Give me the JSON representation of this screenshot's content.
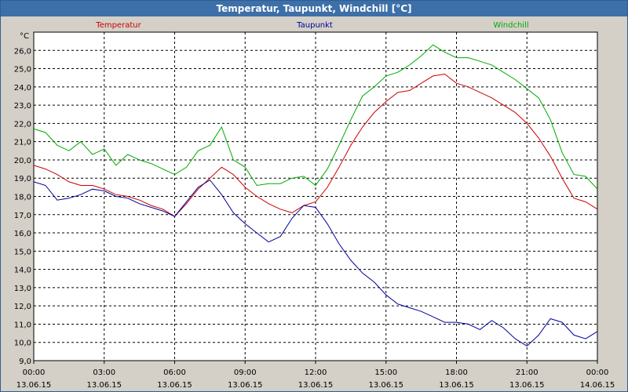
{
  "window": {
    "title": "Temperatur, Taupunkt, Windchill [°C]"
  },
  "chart_data": {
    "type": "line",
    "title": "Temperatur, Taupunkt, Windchill [°C]",
    "ylabel": "°C",
    "ylim": [
      9.0,
      27.0
    ],
    "yticks": [
      "9,0",
      "10,0",
      "11,0",
      "12,0",
      "13,0",
      "14,0",
      "15,0",
      "16,0",
      "17,0",
      "18,0",
      "19,0",
      "20,0",
      "21,0",
      "22,0",
      "23,0",
      "24,0",
      "25,0",
      "26,0"
    ],
    "xlim": [
      0,
      24
    ],
    "xticks": [
      {
        "time": "00:00",
        "date": "13.06.15"
      },
      {
        "time": "03:00",
        "date": "13.06.15"
      },
      {
        "time": "06:00",
        "date": "13.06.15"
      },
      {
        "time": "09:00",
        "date": "13.06.15"
      },
      {
        "time": "12:00",
        "date": "13.06.15"
      },
      {
        "time": "15:00",
        "date": "13.06.15"
      },
      {
        "time": "18:00",
        "date": "13.06.15"
      },
      {
        "time": "21:00",
        "date": "13.06.15"
      },
      {
        "time": "00:00",
        "date": "14.06.15"
      }
    ],
    "grid": true,
    "legend": "top",
    "series": [
      {
        "name": "Temperatur",
        "color": "#cc0000",
        "points": [
          [
            0,
            19.7
          ],
          [
            0.5,
            19.5
          ],
          [
            1,
            19.2
          ],
          [
            1.5,
            18.8
          ],
          [
            2,
            18.6
          ],
          [
            2.5,
            18.6
          ],
          [
            3,
            18.4
          ],
          [
            3.5,
            18.1
          ],
          [
            4,
            18.0
          ],
          [
            4.5,
            17.8
          ],
          [
            5,
            17.5
          ],
          [
            5.5,
            17.3
          ],
          [
            6,
            16.9
          ],
          [
            6.5,
            17.6
          ],
          [
            7,
            18.4
          ],
          [
            7.5,
            19.0
          ],
          [
            8,
            19.6
          ],
          [
            8.5,
            19.2
          ],
          [
            9,
            18.5
          ],
          [
            9.5,
            18.0
          ],
          [
            10,
            17.6
          ],
          [
            10.5,
            17.3
          ],
          [
            11,
            17.1
          ],
          [
            11.5,
            17.5
          ],
          [
            12,
            17.7
          ],
          [
            12.5,
            18.5
          ],
          [
            13,
            19.6
          ],
          [
            13.5,
            20.8
          ],
          [
            14,
            21.8
          ],
          [
            14.5,
            22.6
          ],
          [
            15,
            23.2
          ],
          [
            15.5,
            23.7
          ],
          [
            16,
            23.8
          ],
          [
            16.5,
            24.2
          ],
          [
            17,
            24.6
          ],
          [
            17.5,
            24.7
          ],
          [
            18,
            24.2
          ],
          [
            18.5,
            24.0
          ],
          [
            19,
            23.7
          ],
          [
            19.5,
            23.4
          ],
          [
            20,
            23.0
          ],
          [
            20.5,
            22.6
          ],
          [
            21,
            22.0
          ],
          [
            21.5,
            21.2
          ],
          [
            22,
            20.2
          ],
          [
            22.5,
            19.0
          ],
          [
            23,
            17.9
          ],
          [
            23.5,
            17.7
          ],
          [
            24,
            17.3
          ]
        ]
      },
      {
        "name": "Taupunkt",
        "color": "#000099",
        "points": [
          [
            0,
            18.8
          ],
          [
            0.5,
            18.6
          ],
          [
            1,
            17.8
          ],
          [
            1.5,
            17.9
          ],
          [
            2,
            18.1
          ],
          [
            2.5,
            18.4
          ],
          [
            3,
            18.3
          ],
          [
            3.5,
            18.0
          ],
          [
            4,
            17.9
          ],
          [
            4.5,
            17.6
          ],
          [
            5,
            17.4
          ],
          [
            5.5,
            17.2
          ],
          [
            6,
            16.9
          ],
          [
            6.5,
            17.7
          ],
          [
            7,
            18.5
          ],
          [
            7.5,
            18.9
          ],
          [
            8,
            18.1
          ],
          [
            8.5,
            17.1
          ],
          [
            9,
            16.5
          ],
          [
            9.5,
            16.0
          ],
          [
            10,
            15.5
          ],
          [
            10.5,
            15.8
          ],
          [
            11,
            16.8
          ],
          [
            11.5,
            17.5
          ],
          [
            12,
            17.4
          ],
          [
            12.5,
            16.5
          ],
          [
            13,
            15.4
          ],
          [
            13.5,
            14.5
          ],
          [
            14,
            13.8
          ],
          [
            14.5,
            13.3
          ],
          [
            15,
            12.6
          ],
          [
            15.5,
            12.1
          ],
          [
            16,
            11.9
          ],
          [
            16.5,
            11.7
          ],
          [
            17,
            11.4
          ],
          [
            17.5,
            11.1
          ],
          [
            18,
            11.1
          ],
          [
            18.5,
            11.0
          ],
          [
            19,
            10.7
          ],
          [
            19.5,
            11.2
          ],
          [
            20,
            10.8
          ],
          [
            20.5,
            10.2
          ],
          [
            21,
            9.8
          ],
          [
            21.5,
            10.4
          ],
          [
            22,
            11.3
          ],
          [
            22.5,
            11.1
          ],
          [
            23,
            10.4
          ],
          [
            23.5,
            10.2
          ],
          [
            24,
            10.6
          ]
        ]
      },
      {
        "name": "Windchill",
        "color": "#00aa00",
        "points": [
          [
            0,
            21.7
          ],
          [
            0.5,
            21.5
          ],
          [
            1,
            20.8
          ],
          [
            1.5,
            20.5
          ],
          [
            2,
            21.0
          ],
          [
            2.5,
            20.3
          ],
          [
            3,
            20.6
          ],
          [
            3.5,
            19.7
          ],
          [
            4,
            20.3
          ],
          [
            4.5,
            20.0
          ],
          [
            5,
            19.8
          ],
          [
            5.5,
            19.5
          ],
          [
            6,
            19.2
          ],
          [
            6.5,
            19.6
          ],
          [
            7,
            20.5
          ],
          [
            7.5,
            20.8
          ],
          [
            8,
            21.8
          ],
          [
            8.5,
            20.0
          ],
          [
            9,
            19.6
          ],
          [
            9.5,
            18.6
          ],
          [
            10,
            18.7
          ],
          [
            10.5,
            18.7
          ],
          [
            11,
            19.0
          ],
          [
            11.5,
            19.1
          ],
          [
            12,
            18.6
          ],
          [
            12.5,
            19.5
          ],
          [
            13,
            20.8
          ],
          [
            13.5,
            22.2
          ],
          [
            14,
            23.5
          ],
          [
            14.5,
            24.0
          ],
          [
            15,
            24.6
          ],
          [
            15.5,
            24.8
          ],
          [
            16,
            25.2
          ],
          [
            16.5,
            25.7
          ],
          [
            17,
            26.3
          ],
          [
            17.5,
            25.9
          ],
          [
            18,
            25.6
          ],
          [
            18.5,
            25.6
          ],
          [
            19,
            25.4
          ],
          [
            19.5,
            25.2
          ],
          [
            20,
            24.8
          ],
          [
            20.5,
            24.4
          ],
          [
            21,
            23.9
          ],
          [
            21.5,
            23.4
          ],
          [
            22,
            22.2
          ],
          [
            22.5,
            20.4
          ],
          [
            23,
            19.2
          ],
          [
            23.5,
            19.1
          ],
          [
            24,
            18.4
          ]
        ]
      }
    ]
  }
}
